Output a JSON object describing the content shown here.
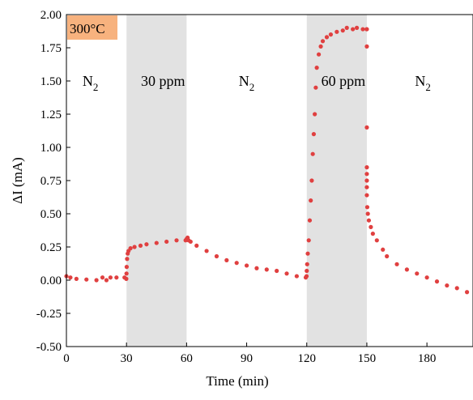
{
  "chart_data": {
    "type": "scatter",
    "xlabel": "Time (min)",
    "ylabel": "ΔI (mA)",
    "xlim": [
      0,
      203
    ],
    "ylim": [
      -0.5,
      2.0
    ],
    "x_ticks": [
      0,
      30,
      60,
      90,
      120,
      150,
      180
    ],
    "y_ticks": [
      "-0.50",
      "-0.25",
      "0.00",
      "0.25",
      "0.50",
      "0.75",
      "1.00",
      "1.25",
      "1.50",
      "1.75",
      "2.00"
    ],
    "grid": false,
    "legend": "none",
    "colors": {
      "series": "#e04040",
      "shade": "#e2e2e2",
      "badge": "#f7b27e"
    },
    "temperature_label": "300°C",
    "shaded_regions": [
      {
        "start": 30,
        "end": 60,
        "label": "30 ppm"
      },
      {
        "start": 120,
        "end": 150,
        "label": "60 ppm"
      }
    ],
    "gas_labels": [
      {
        "x": 12,
        "base": "N",
        "sub": "2"
      },
      {
        "x": 90,
        "base": "N",
        "sub": "2"
      },
      {
        "x": 178,
        "base": "N",
        "sub": "2"
      }
    ],
    "series": [
      {
        "x": [
          0,
          2,
          5,
          10,
          15,
          18,
          20,
          22,
          25,
          29,
          29.9,
          30,
          30.1,
          30.3,
          30.6,
          31,
          32,
          34,
          37,
          40,
          45,
          50,
          55,
          59.5,
          60,
          60.5,
          61,
          62,
          65,
          70,
          75,
          80,
          85,
          90,
          95,
          100,
          105,
          110,
          115,
          119.5,
          119.9,
          120,
          120.2,
          120.5,
          121,
          121.5,
          122,
          122.5,
          123,
          123.5,
          124,
          124.5,
          125,
          126,
          127,
          128,
          130,
          132,
          135,
          138,
          140,
          143,
          145,
          148,
          149.9,
          150,
          150,
          150,
          150,
          150,
          150,
          150,
          150,
          150.2,
          150.5,
          151,
          152,
          153,
          155,
          158,
          160,
          165,
          170,
          175,
          180,
          185,
          190,
          195,
          200,
          203
        ],
        "y": [
          0.03,
          0.02,
          0.01,
          0.005,
          0.0,
          0.02,
          0.0,
          0.02,
          0.02,
          0.02,
          0.01,
          0.05,
          0.1,
          0.16,
          0.2,
          0.22,
          0.24,
          0.25,
          0.26,
          0.27,
          0.28,
          0.29,
          0.3,
          0.3,
          0.31,
          0.32,
          0.3,
          0.29,
          0.26,
          0.22,
          0.18,
          0.15,
          0.13,
          0.11,
          0.09,
          0.08,
          0.07,
          0.05,
          0.03,
          0.02,
          0.03,
          0.07,
          0.12,
          0.2,
          0.3,
          0.45,
          0.6,
          0.75,
          0.95,
          1.1,
          1.25,
          1.45,
          1.6,
          1.7,
          1.76,
          1.8,
          1.83,
          1.85,
          1.87,
          1.88,
          1.9,
          1.89,
          1.9,
          1.89,
          1.89,
          1.89,
          1.76,
          1.15,
          0.85,
          0.8,
          0.75,
          0.7,
          0.64,
          0.55,
          0.5,
          0.45,
          0.4,
          0.35,
          0.3,
          0.23,
          0.18,
          0.12,
          0.08,
          0.05,
          0.02,
          -0.01,
          -0.04,
          -0.06,
          -0.09,
          -0.1
        ]
      }
    ]
  }
}
